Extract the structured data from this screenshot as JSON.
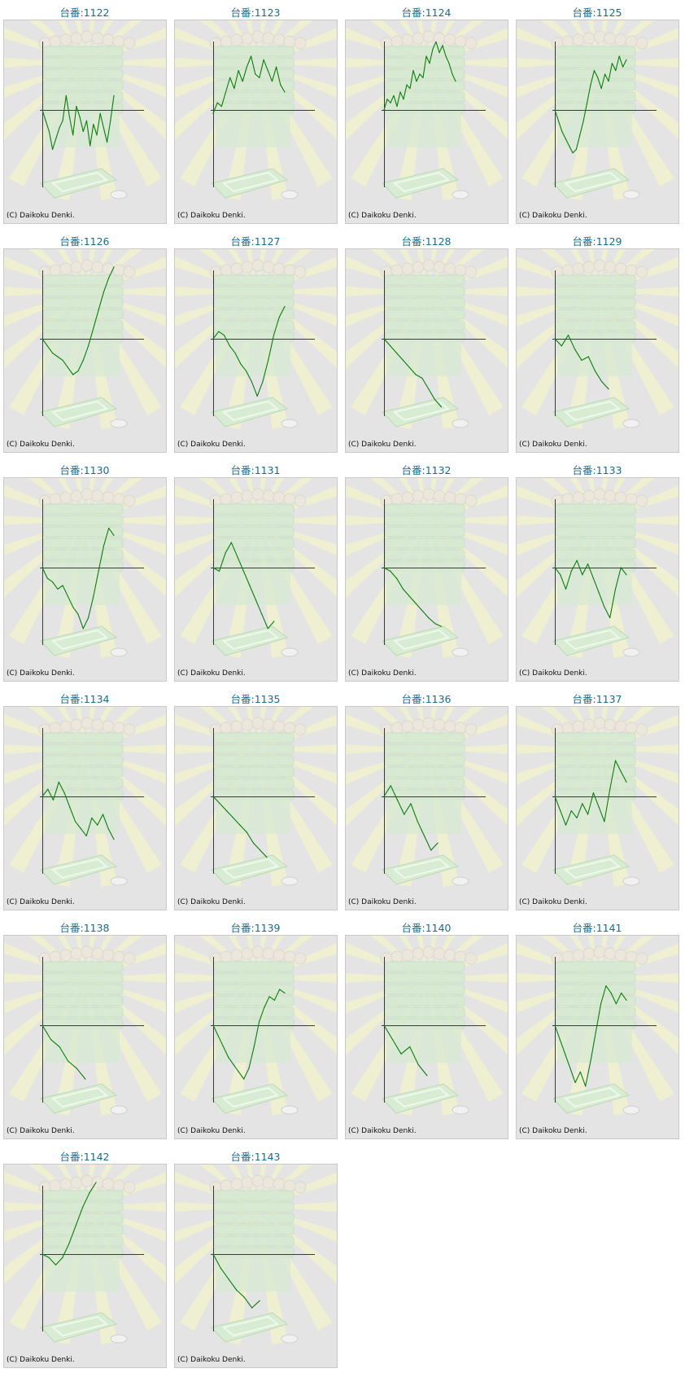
{
  "copyright": "(C) Daikoku Denki.",
  "colors": {
    "title": "#1f6a8a",
    "line": "#0a7d0a",
    "axis": "#3a3a3a",
    "panel": "#e4e4e4",
    "panel_border": "#c9c9c9",
    "rays": "#f3f3cc",
    "machine": "#d6ead2"
  },
  "chart_data": [
    {
      "type": "line",
      "title": "台番:1122",
      "values": [
        0,
        -0.15,
        -0.3,
        -0.55,
        -0.4,
        -0.25,
        -0.15,
        0.2,
        -0.1,
        -0.35,
        0.05,
        -0.1,
        -0.3,
        -0.15,
        -0.5,
        -0.2,
        -0.35,
        -0.05,
        -0.25,
        -0.45,
        -0.15,
        0.2
      ]
    },
    {
      "type": "line",
      "title": "台番:1123",
      "values": [
        -0.05,
        0.1,
        0.05,
        0.25,
        0.45,
        0.3,
        0.55,
        0.4,
        0.6,
        0.75,
        0.5,
        0.45,
        0.7,
        0.55,
        0.4,
        0.6,
        0.35,
        0.25
      ]
    },
    {
      "type": "line",
      "title": "台番:1124",
      "values": [
        0,
        0.15,
        0.1,
        0.2,
        0.05,
        0.25,
        0.15,
        0.35,
        0.3,
        0.55,
        0.4,
        0.5,
        0.45,
        0.75,
        0.65,
        0.85,
        0.95,
        0.8,
        0.9,
        0.75,
        0.65,
        0.5,
        0.4
      ]
    },
    {
      "type": "line",
      "title": "台番:1125",
      "values": [
        0,
        -0.15,
        -0.3,
        -0.4,
        -0.5,
        -0.6,
        -0.55,
        -0.35,
        -0.15,
        0.1,
        0.35,
        0.55,
        0.45,
        0.3,
        0.5,
        0.4,
        0.65,
        0.55,
        0.75,
        0.6,
        0.7
      ]
    },
    {
      "type": "line",
      "title": "台番:1126",
      "values": [
        0,
        -0.1,
        -0.2,
        -0.25,
        -0.3,
        -0.4,
        -0.5,
        -0.45,
        -0.3,
        -0.1,
        0.15,
        0.4,
        0.65,
        0.85,
        1.0
      ]
    },
    {
      "type": "line",
      "title": "台番:1127",
      "values": [
        0,
        0.1,
        0.05,
        -0.1,
        -0.2,
        -0.35,
        -0.45,
        -0.6,
        -0.8,
        -0.6,
        -0.3,
        0.05,
        0.3,
        0.45
      ]
    },
    {
      "type": "line",
      "title": "台番:1128",
      "values": [
        0,
        -0.1,
        -0.2,
        -0.3,
        -0.4,
        -0.5,
        -0.55,
        -0.7,
        -0.85,
        -0.95
      ]
    },
    {
      "type": "line",
      "title": "台番:1129",
      "values": [
        0,
        -0.1,
        0.05,
        -0.15,
        -0.3,
        -0.25,
        -0.45,
        -0.6,
        -0.7
      ]
    },
    {
      "type": "line",
      "title": "台番:1130",
      "values": [
        0,
        -0.15,
        -0.2,
        -0.3,
        -0.25,
        -0.4,
        -0.55,
        -0.65,
        -0.85,
        -0.7,
        -0.4,
        -0.05,
        0.3,
        0.55,
        0.45
      ]
    },
    {
      "type": "line",
      "title": "台番:1131",
      "values": [
        0,
        -0.05,
        0.2,
        0.35,
        0.15,
        -0.05,
        -0.25,
        -0.45,
        -0.65,
        -0.85,
        -0.75
      ]
    },
    {
      "type": "line",
      "title": "台番:1132",
      "values": [
        0,
        -0.05,
        -0.15,
        -0.3,
        -0.4,
        -0.5,
        -0.6,
        -0.7,
        -0.78,
        -0.82
      ]
    },
    {
      "type": "line",
      "title": "台番:1133",
      "values": [
        0,
        -0.1,
        -0.3,
        -0.05,
        0.1,
        -0.1,
        0.05,
        -0.15,
        -0.35,
        -0.55,
        -0.7,
        -0.3,
        0.0,
        -0.1
      ]
    },
    {
      "type": "line",
      "title": "台番:1134",
      "values": [
        0,
        0.1,
        -0.05,
        0.2,
        0.05,
        -0.15,
        -0.35,
        -0.45,
        -0.55,
        -0.3,
        -0.4,
        -0.25,
        -0.45,
        -0.6
      ]
    },
    {
      "type": "line",
      "title": "台番:1135",
      "values": [
        0,
        -0.1,
        -0.2,
        -0.3,
        -0.4,
        -0.5,
        -0.65,
        -0.75,
        -0.85
      ]
    },
    {
      "type": "line",
      "title": "台番:1136",
      "values": [
        0,
        0.15,
        -0.05,
        -0.25,
        -0.1,
        -0.35,
        -0.55,
        -0.75,
        -0.65
      ]
    },
    {
      "type": "line",
      "title": "台番:1137",
      "values": [
        0,
        -0.2,
        -0.4,
        -0.2,
        -0.3,
        -0.1,
        -0.25,
        0.05,
        -0.15,
        -0.35,
        0.1,
        0.5,
        0.35,
        0.2
      ]
    },
    {
      "type": "line",
      "title": "台番:1138",
      "values": [
        0,
        -0.2,
        -0.3,
        -0.5,
        -0.6,
        -0.75
      ]
    },
    {
      "type": "line",
      "title": "台番:1139",
      "values": [
        0,
        -0.15,
        -0.3,
        -0.45,
        -0.55,
        -0.65,
        -0.75,
        -0.6,
        -0.3,
        0.05,
        0.25,
        0.4,
        0.35,
        0.5,
        0.45
      ]
    },
    {
      "type": "line",
      "title": "台番:1140",
      "values": [
        0,
        -0.2,
        -0.4,
        -0.3,
        -0.55,
        -0.7
      ]
    },
    {
      "type": "line",
      "title": "台番:1141",
      "values": [
        0,
        -0.2,
        -0.4,
        -0.6,
        -0.8,
        -0.65,
        -0.85,
        -0.5,
        -0.1,
        0.3,
        0.55,
        0.45,
        0.3,
        0.45,
        0.35
      ]
    },
    {
      "type": "line",
      "title": "台番:1142",
      "values": [
        0,
        -0.05,
        -0.15,
        -0.05,
        0.15,
        0.4,
        0.65,
        0.85,
        1.0
      ]
    },
    {
      "type": "line",
      "title": "台番:1143",
      "values": [
        0,
        -0.2,
        -0.35,
        -0.5,
        -0.6,
        -0.75,
        -0.65
      ]
    }
  ]
}
